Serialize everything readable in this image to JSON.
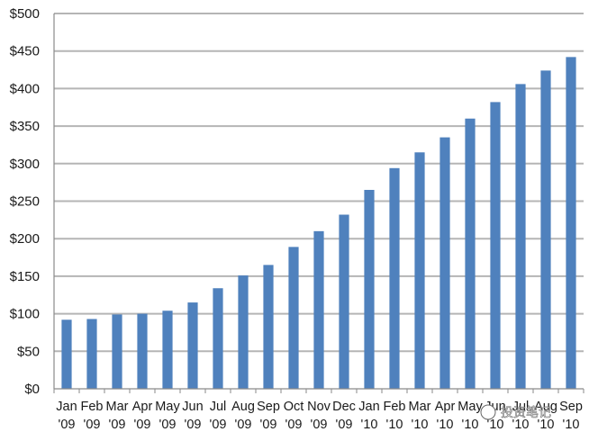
{
  "chart_data": {
    "type": "bar",
    "categories": [
      [
        "Jan",
        "'09"
      ],
      [
        "Feb",
        "'09"
      ],
      [
        "Mar",
        "'09"
      ],
      [
        "Apr",
        "'09"
      ],
      [
        "May",
        "'09"
      ],
      [
        "Jun",
        "'09"
      ],
      [
        "Jul",
        "'09"
      ],
      [
        "Aug",
        "'09"
      ],
      [
        "Sep",
        "'09"
      ],
      [
        "Oct",
        "'09"
      ],
      [
        "Nov",
        "'09"
      ],
      [
        "Dec",
        "'09"
      ],
      [
        "Jan",
        "'10"
      ],
      [
        "Feb",
        "'10"
      ],
      [
        "Mar",
        "'10"
      ],
      [
        "Apr",
        "'10"
      ],
      [
        "May",
        "'10"
      ],
      [
        "Jun",
        "'10"
      ],
      [
        "Jul",
        "'10"
      ],
      [
        "Aug",
        "'10"
      ],
      [
        "Sep",
        "'10"
      ]
    ],
    "values": [
      92,
      93,
      99,
      100,
      104,
      115,
      134,
      151,
      165,
      189,
      210,
      232,
      265,
      294,
      315,
      335,
      360,
      382,
      406,
      424,
      442
    ],
    "title": "",
    "xlabel": "",
    "ylabel": "",
    "ylim": [
      0,
      500
    ],
    "yticks": [
      0,
      50,
      100,
      150,
      200,
      250,
      300,
      350,
      400,
      450,
      500
    ],
    "ytick_prefix": "$",
    "grid": true,
    "legend": "none",
    "bar_color": "#4f81bd",
    "watermark": "投资笔记"
  }
}
